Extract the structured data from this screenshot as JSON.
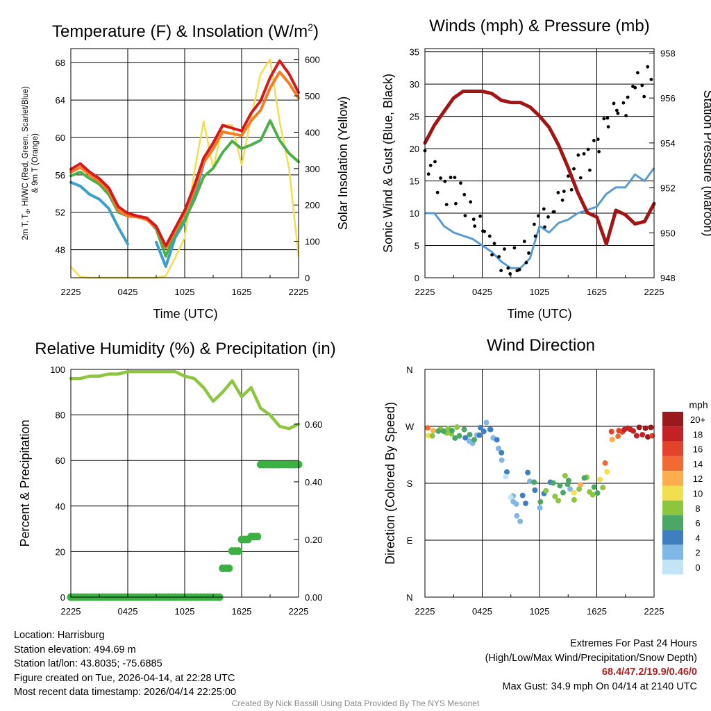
{
  "colors": {
    "temp": "#d7191c",
    "dew": "#4393c3",
    "hiwc": "#3a9fc9",
    "t9m": "#f47d23",
    "green": "#4daf4a",
    "solar": "#f2df4f",
    "wind": "#5a9bd4",
    "gust": "#000000",
    "pressure": "#a31515",
    "rh": "#8cc63f",
    "precip": "#3cb043"
  },
  "x_ticks": [
    "2225",
    "0425",
    "1025",
    "1625",
    "2225"
  ],
  "panels": {
    "temp": {
      "title": "Temperature (F) & Insolation (W/m",
      "title_sup": "2",
      "title_end": ")",
      "ylabel_line1": "2m T, T",
      "ylabel_sub": "d",
      "ylabel_line1_end": ", HI/WC (Red, Green, Scarlet/Blue)",
      "ylabel_line2": "& 9m T (Orange)",
      "y2label": "Solar Insolation (Yellow)",
      "xlabel": "Time (UTC)"
    },
    "wind": {
      "title": "Winds (mph) & Pressure (mb)",
      "ylabel": "Sonic Wind & Gust (Blue, Black)",
      "y2label": "Station Pressure (Maroon)",
      "xlabel": "Time (UTC)"
    },
    "rh": {
      "title": "Relative Humidity (%) & Precipitation (in)",
      "ylabel": "Percent & Precipitation"
    },
    "dir": {
      "title": "Wind Direction",
      "ylabel": "Direction (Colored By Speed)",
      "legend_title": "mph"
    }
  },
  "info": {
    "location": "Location: Harrisburg",
    "elevation": "Station elevation: 494.69 m",
    "latlon": "Station lat/lon: 43.8035; -75.6885",
    "created": "Figure created on Tue, 2026-04-14, at 22:28 UTC",
    "timestamp": "Most recent data timestamp: 2026/04/14 22:25:00",
    "ext_title": "Extremes For Past 24 Hours",
    "ext_sub": "(High/Low/Max Wind/Precipitation/Snow Depth)",
    "ext_values": "68.4/47.2/19.9/0.46/0",
    "max_gust": "Max Gust: 34.9 mph On 04/14 at 2140 UTC",
    "credit": "Created By Nick Bassill Using Data Provided By The NYS Mesonet"
  },
  "chart_data": [
    {
      "type": "line",
      "title": "Temperature (F) & Insolation (W/m2)",
      "xlabel": "Time (UTC)",
      "x": [
        0,
        1,
        2,
        3,
        4,
        5,
        6,
        7,
        8,
        9,
        10,
        11,
        12,
        13,
        14,
        15,
        16,
        17,
        18,
        19,
        20,
        21,
        22,
        23,
        24
      ],
      "ylim": [
        45,
        69.5
      ],
      "yticks": [
        48,
        52,
        56,
        60,
        64,
        68
      ],
      "y2lim": [
        0,
        630
      ],
      "y2ticks": [
        0,
        100,
        200,
        300,
        400,
        500,
        600
      ],
      "series": [
        {
          "name": "2m T",
          "color": "#d7191c",
          "values": [
            56.6,
            57.2,
            56.3,
            55.6,
            54.6,
            52.6,
            51.9,
            51.6,
            51.4,
            50.5,
            48.4,
            50.3,
            52.2,
            54.8,
            57.8,
            59.4,
            61.3,
            61.0,
            60.7,
            62.6,
            63.9,
            66.4,
            68.2,
            66.8,
            64.8
          ]
        },
        {
          "name": "9m T",
          "color": "#f47d23",
          "values": [
            56.3,
            56.8,
            56.0,
            55.3,
            54.3,
            52.2,
            51.6,
            51.5,
            51.2,
            50.4,
            48.2,
            50.0,
            51.9,
            54.3,
            57.3,
            58.8,
            60.6,
            60.4,
            60.2,
            61.8,
            62.9,
            65.3,
            67.0,
            65.8,
            64.2
          ]
        },
        {
          "name": "Dew point",
          "color": "#4daf4a",
          "values": [
            55.9,
            56.3,
            55.6,
            55.0,
            53.9,
            52.0,
            51.6,
            51.5,
            51.3,
            50.2,
            47.3,
            49.8,
            51.2,
            53.3,
            55.8,
            56.7,
            58.4,
            59.6,
            58.8,
            59.2,
            59.7,
            61.8,
            59.7,
            58.3,
            57.4
          ]
        },
        {
          "name": "HI/WC",
          "color": "#3a9fc9",
          "values": [
            55.2,
            54.8,
            53.9,
            53.4,
            52.4,
            50.4,
            48.6,
            null,
            null,
            48.8,
            46.2,
            49.3,
            51.0,
            53.6,
            57.2,
            null,
            null,
            null,
            null,
            null,
            null,
            null,
            null,
            null,
            null
          ]
        },
        {
          "name": "Solar insolation",
          "color": "#f2df4f",
          "axis": "y2",
          "values": [
            30,
            2,
            0,
            0,
            0,
            0,
            0,
            0,
            0,
            0,
            5,
            55,
            110,
            290,
            430,
            300,
            420,
            420,
            310,
            440,
            560,
            600,
            430,
            300,
            60
          ]
        }
      ]
    },
    {
      "type": "line",
      "title": "Winds (mph) & Pressure (mb)",
      "xlabel": "Time (UTC)",
      "x": [
        0,
        1,
        2,
        3,
        4,
        5,
        6,
        7,
        8,
        9,
        10,
        11,
        12,
        13,
        14,
        15,
        16,
        17,
        18,
        19,
        20,
        21,
        22,
        23,
        24
      ],
      "ylim": [
        0,
        35.5
      ],
      "yticks": [
        0,
        5,
        10,
        15,
        20,
        25,
        30,
        35
      ],
      "y2lim": [
        948,
        958.2
      ],
      "y2ticks": [
        948,
        950,
        952,
        954,
        956,
        958
      ],
      "series": [
        {
          "name": "Sonic wind",
          "color": "#5a9bd4",
          "values": [
            10,
            10,
            8,
            7,
            6.5,
            6,
            5,
            4,
            2.5,
            1.5,
            1.5,
            3,
            8,
            7,
            8.5,
            9,
            10,
            10.5,
            11,
            13,
            14,
            14,
            16,
            15,
            17
          ]
        },
        {
          "name": "Gust",
          "color": "#000000",
          "type": "scatter",
          "values": [
            18,
            16,
            13,
            14,
            12,
            9,
            8,
            5,
            3,
            2.5,
            3,
            5,
            10,
            9,
            12,
            14,
            17,
            18,
            20,
            24,
            26,
            26,
            31,
            30,
            33
          ]
        },
        {
          "name": "Station pressure",
          "color": "#a31515",
          "axis": "y2",
          "values": [
            954,
            954.8,
            955.4,
            956.0,
            956.3,
            956.3,
            956.3,
            956.2,
            955.9,
            955.8,
            955.8,
            955.6,
            955.2,
            954.7,
            953.9,
            952.9,
            951.8,
            950.9,
            950.7,
            949.5,
            951.0,
            950.8,
            950.4,
            950.5,
            951.3
          ]
        }
      ]
    },
    {
      "type": "line",
      "title": "Relative Humidity (%) & Precipitation (in)",
      "x": [
        0,
        1,
        2,
        3,
        4,
        5,
        6,
        7,
        8,
        9,
        10,
        11,
        12,
        13,
        14,
        15,
        16,
        17,
        18,
        19,
        20,
        21,
        22,
        23,
        24
      ],
      "ylim": [
        0,
        100
      ],
      "yticks": [
        0,
        20,
        40,
        60,
        80,
        100
      ],
      "y2lim": [
        0,
        0.79
      ],
      "y2ticks": [
        0.0,
        0.2,
        0.4,
        0.6
      ],
      "series": [
        {
          "name": "Relative humidity",
          "color": "#8cc63f",
          "values": [
            96,
            96,
            97,
            97,
            98,
            98,
            99,
            99,
            99,
            99,
            99,
            99,
            97,
            96,
            92,
            86,
            90,
            95,
            88,
            92,
            83,
            80,
            75,
            74,
            76
          ]
        },
        {
          "name": "Precipitation",
          "color": "#3cb043",
          "type": "scatter",
          "axis": "y2",
          "values": [
            0,
            0,
            0,
            0,
            0,
            0,
            0,
            0,
            0,
            0,
            0,
            0,
            0,
            0,
            0,
            0,
            0.1,
            0.16,
            0.2,
            0.21,
            0.46,
            0.46,
            0.46,
            0.46,
            0.46
          ]
        }
      ]
    },
    {
      "type": "scatter",
      "title": "Wind Direction",
      "ylabel": "Direction (Colored By Speed)",
      "ylim": [
        0,
        360
      ],
      "ytick_labels": [
        "N",
        "E",
        "S",
        "W",
        "N"
      ],
      "points_x": [
        0.3,
        0.8,
        1.5,
        2.1,
        2.6,
        3.0,
        3.5,
        4.2,
        4.7,
        5.1,
        5.6,
        6.0,
        6.6,
        7.0,
        7.6,
        8.0,
        8.5,
        9.1,
        9.4,
        9.8,
        10.4,
        10.9,
        11.5,
        12.1,
        12.6,
        13.3,
        13.8,
        14.3,
        14.8,
        15.1,
        15.6,
        16.2,
        16.8,
        17.4,
        17.9,
        18.5,
        19.0,
        19.6,
        20.3,
        20.8,
        21.4,
        22.0,
        22.6,
        23.2,
        23.7
      ],
      "points_dir": [
        262,
        260,
        265,
        262,
        263,
        258,
        262,
        258,
        251,
        245,
        255,
        264,
        270,
        258,
        242,
        223,
        195,
        160,
        150,
        125,
        155,
        190,
        175,
        145,
        165,
        180,
        155,
        170,
        185,
        178,
        160,
        175,
        190,
        165,
        170,
        180,
        205,
        255,
        258,
        262,
        265,
        258,
        262,
        260,
        262
      ],
      "points_speed": [
        12,
        10,
        8,
        7,
        9,
        6,
        7,
        5,
        4,
        4,
        3,
        4,
        2,
        2,
        3,
        3,
        2,
        1,
        2,
        3,
        4,
        3,
        5,
        4,
        6,
        5,
        8,
        6,
        7,
        4,
        9,
        10,
        7,
        8,
        6,
        9,
        12,
        14,
        15,
        16,
        18,
        17,
        19,
        20,
        18
      ],
      "legend_labels": [
        "20+",
        "18",
        "16",
        "14",
        "12",
        "10",
        "8",
        "6",
        "4",
        "2",
        "0"
      ],
      "legend_colors": [
        "#99191d",
        "#c42125",
        "#e2432a",
        "#f06a31",
        "#fdae4c",
        "#f2df4f",
        "#8cc63f",
        "#4aa764",
        "#3f7fc1",
        "#7fb8e6",
        "#c3e3f7"
      ]
    }
  ]
}
